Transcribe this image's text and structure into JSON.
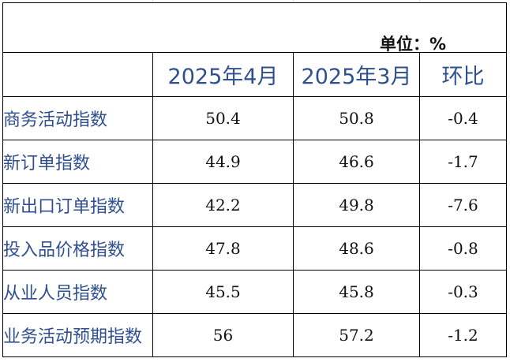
{
  "unit_label": "单位：%",
  "columns": [
    "2025年4月",
    "2025年3月",
    "环比"
  ],
  "rows": [
    {
      "name": "商务活动指数",
      "apr": "50.4",
      "mar": "50.8",
      "mom": "-0.4"
    },
    {
      "name": "新订单指数",
      "apr": "44.9",
      "mar": "46.6",
      "mom": "-1.7"
    },
    {
      "name": "新出口订单指数",
      "apr": "42.2",
      "mar": "49.8",
      "mom": "-7.6"
    },
    {
      "name": "投入品价格指数",
      "apr": "47.8",
      "mar": "48.6",
      "mom": "-0.8"
    },
    {
      "name": "从业人员指数",
      "apr": "45.5",
      "mar": "45.8",
      "mom": "-0.3"
    },
    {
      "name": "业务活动预期指数",
      "apr": "56",
      "mar": "57.2",
      "mom": "-1.2"
    }
  ]
}
